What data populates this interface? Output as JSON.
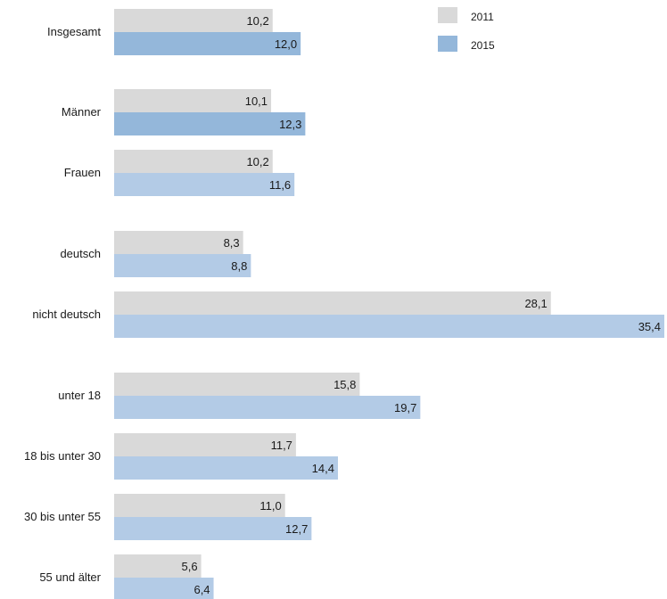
{
  "chart_data": {
    "type": "bar",
    "orientation": "horizontal",
    "categories": [
      "Insgesamt",
      "Männer",
      "Frauen",
      "deutsch",
      "nicht deutsch",
      "unter 18",
      "18 bis unter 30",
      "30 bis unter 55",
      "55 und älter"
    ],
    "series": [
      {
        "name": "2011",
        "color": "#d9d9d9",
        "values": [
          10.2,
          10.1,
          10.2,
          8.3,
          28.1,
          15.8,
          11.7,
          11.0,
          5.6
        ],
        "labels": [
          "10,2",
          "10,1",
          "10,2",
          "8,3",
          "28,1",
          "15,8",
          "11,7",
          "11,0",
          "5,6"
        ]
      },
      {
        "name": "2015",
        "color": "#b3cbe6",
        "highlight_color": "#94b7da",
        "highlight_categories": [
          "Insgesamt",
          "Männer"
        ],
        "values": [
          12.0,
          12.3,
          11.6,
          8.8,
          35.4,
          19.7,
          14.4,
          12.7,
          6.4
        ],
        "labels": [
          "12,0",
          "12,3",
          "11,6",
          "8,8",
          "35,4",
          "19,7",
          "14,4",
          "12,7",
          "6,4"
        ]
      }
    ],
    "xlim": [
      0,
      35.4
    ],
    "grid": false,
    "legend_position": "top-right"
  }
}
